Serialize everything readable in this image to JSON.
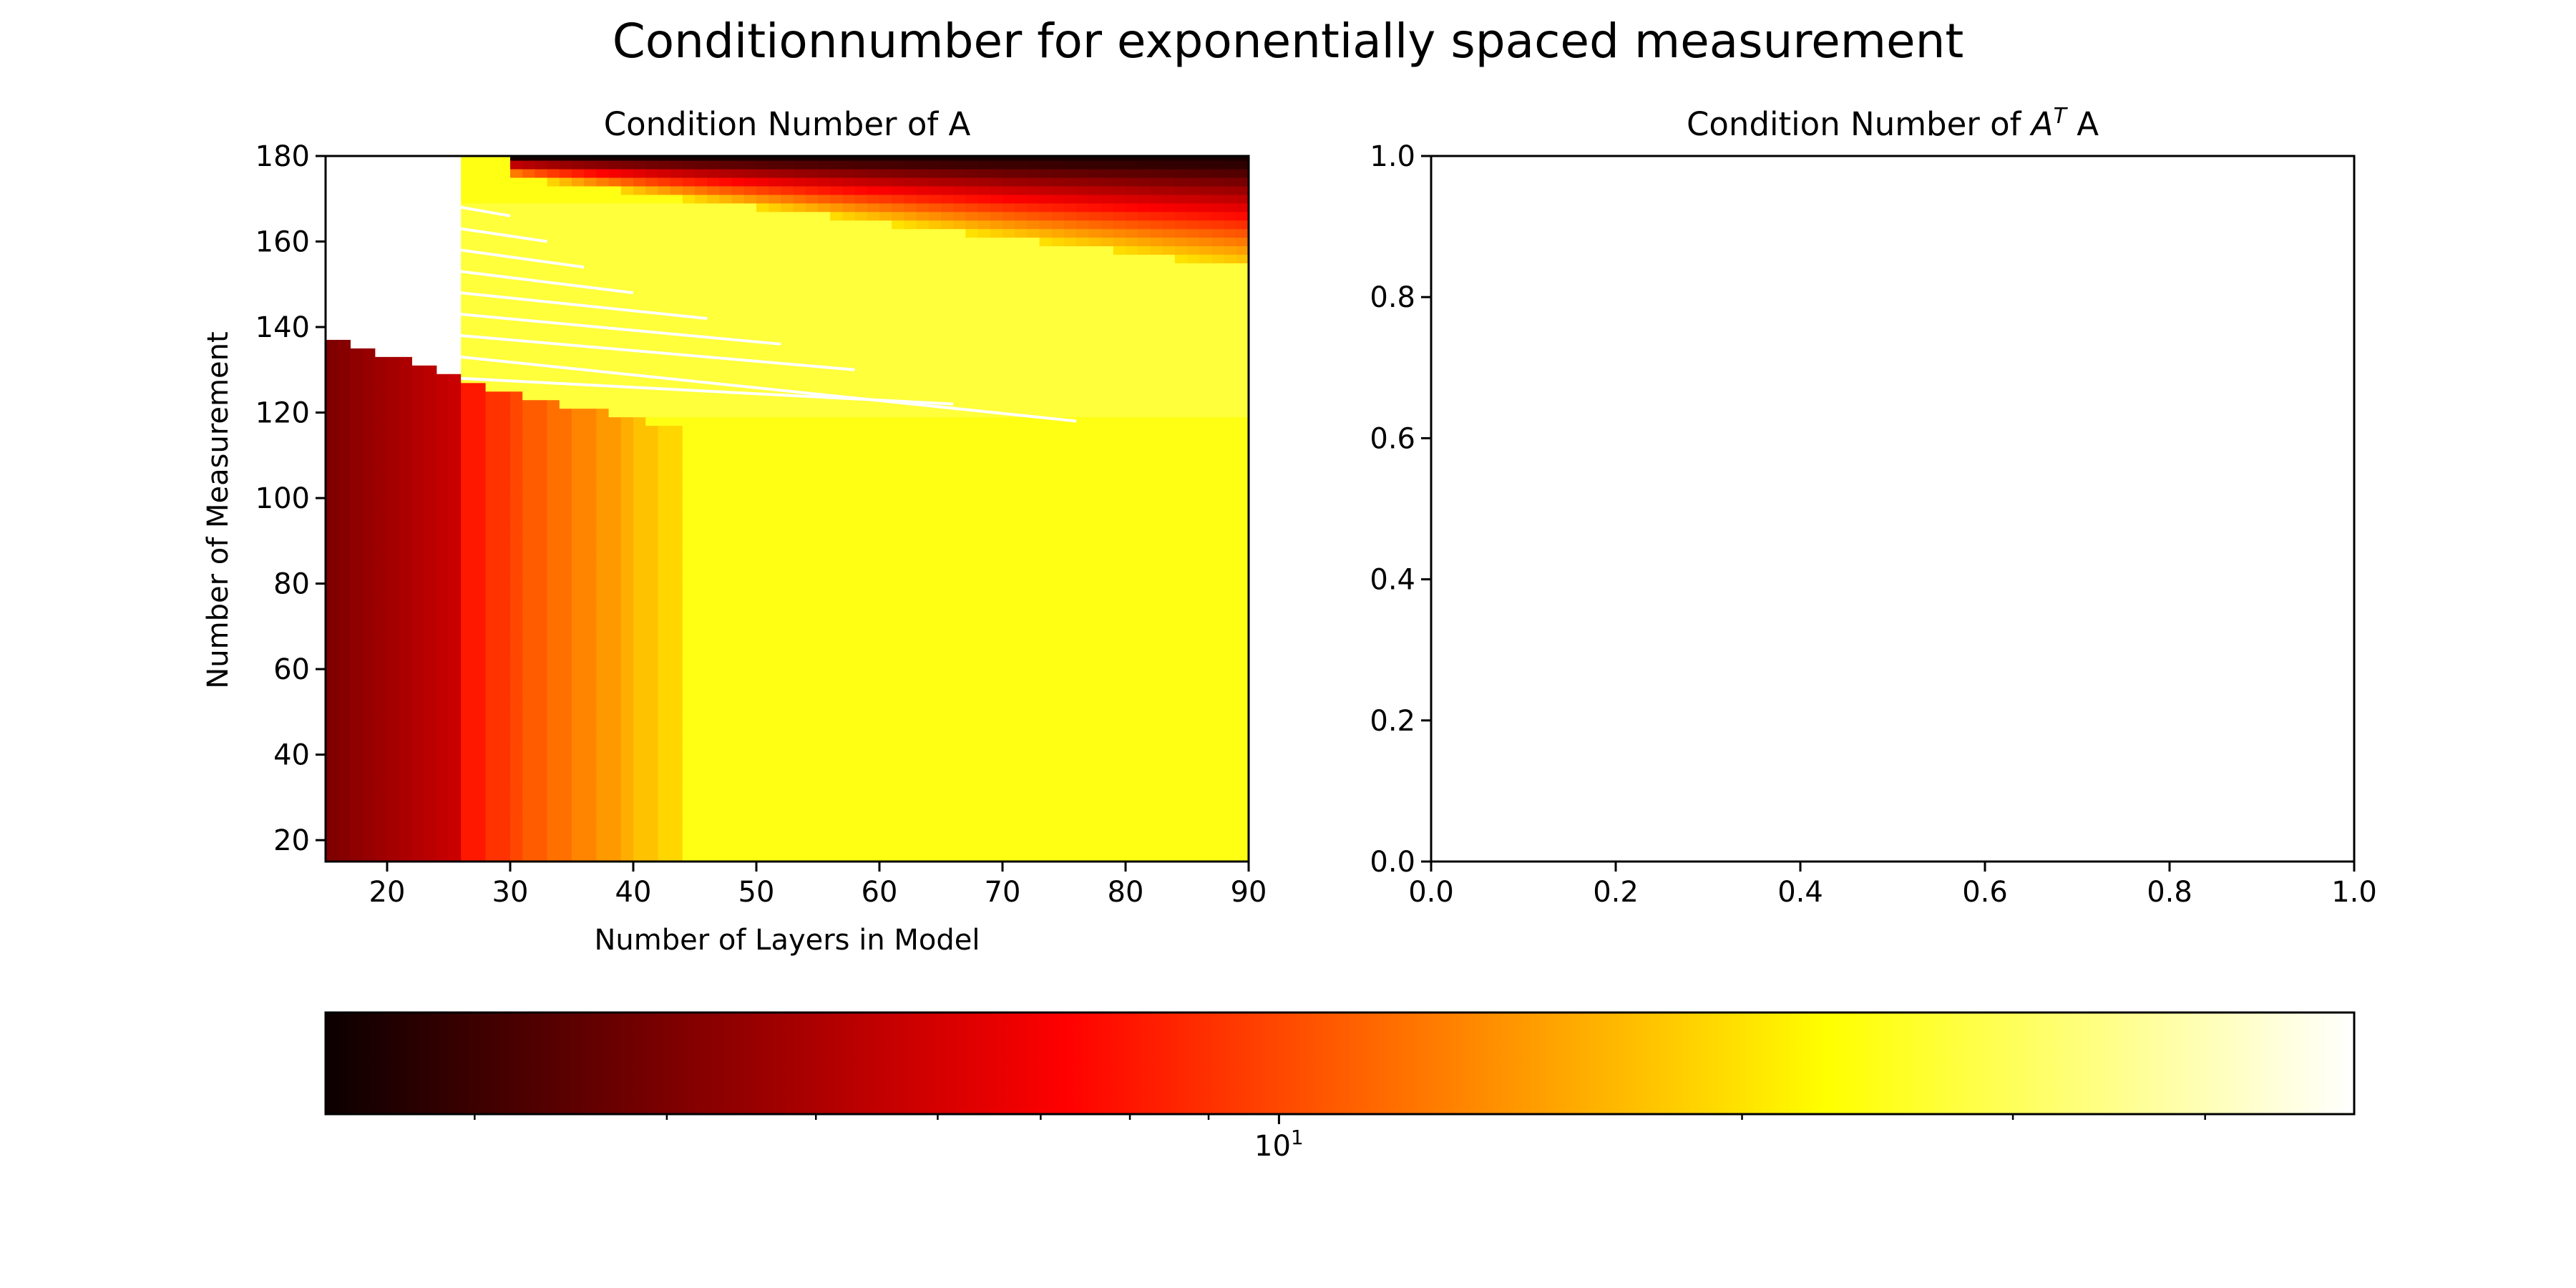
{
  "figure": {
    "suptitle": "Conditionnumber for exponentially spaced measurement"
  },
  "chart_data": [
    {
      "type": "heatmap",
      "title": "Condition Number of A",
      "xlabel": "Number of Layers in Model",
      "ylabel": "Number of Measurement",
      "xlim": [
        15,
        90
      ],
      "ylim": [
        15,
        180
      ],
      "xticks": [
        20,
        30,
        40,
        50,
        60,
        70,
        80,
        90
      ],
      "yticks": [
        20,
        40,
        60,
        80,
        100,
        120,
        140,
        160,
        180
      ],
      "colormap": "hot",
      "color_scale": "log",
      "regions": [
        {
          "x_range": [
            15,
            26
          ],
          "y_range": [
            15,
            138
          ],
          "level": "dark red (low)",
          "note": "boundary descends from y≈138 at x=15 to y≈128 at x=26"
        },
        {
          "x_range": [
            15,
            26
          ],
          "y_range": [
            138,
            180
          ],
          "level": "missing (white)"
        },
        {
          "x_range": [
            26,
            44
          ],
          "y_range": [
            15,
            127
          ],
          "level": "red → orange → yellow gradient with x"
        },
        {
          "x_range": [
            44,
            90
          ],
          "y_range": [
            15,
            145
          ],
          "level": "yellow"
        },
        {
          "x_range": [
            26,
            90
          ],
          "y_range": [
            118,
            170
          ],
          "level": "pale yellow with white diagonal stripes"
        },
        {
          "x_range": [
            31,
            90
          ],
          "y_range": [
            150,
            180
          ],
          "level": "dark red / black band along top edge"
        }
      ]
    },
    {
      "type": "scatter",
      "title": "Condition Number of A^T A",
      "title_parts": {
        "pre": "Condition Number of ",
        "base": "A",
        "sup": "T",
        "post": " A"
      },
      "xlim": [
        0.0,
        1.0
      ],
      "ylim": [
        0.0,
        1.0
      ],
      "xticks": [
        "0.0",
        "0.2",
        "0.4",
        "0.6",
        "0.8",
        "1.0"
      ],
      "yticks": [
        "0.0",
        "0.2",
        "0.4",
        "0.6",
        "0.8",
        "1.0"
      ],
      "series": []
    }
  ],
  "colorbar": {
    "colormap": "hot",
    "scale": "log",
    "range": [
      2.4,
      50
    ],
    "major_tick": {
      "value": 10,
      "base": "10",
      "exp": "1"
    },
    "minor_ticks": [
      3,
      4,
      5,
      6,
      7,
      8,
      9,
      20,
      30,
      40
    ]
  },
  "colors": {
    "axes": "#000000",
    "background": "#ffffff",
    "missing": "#ffffff"
  }
}
